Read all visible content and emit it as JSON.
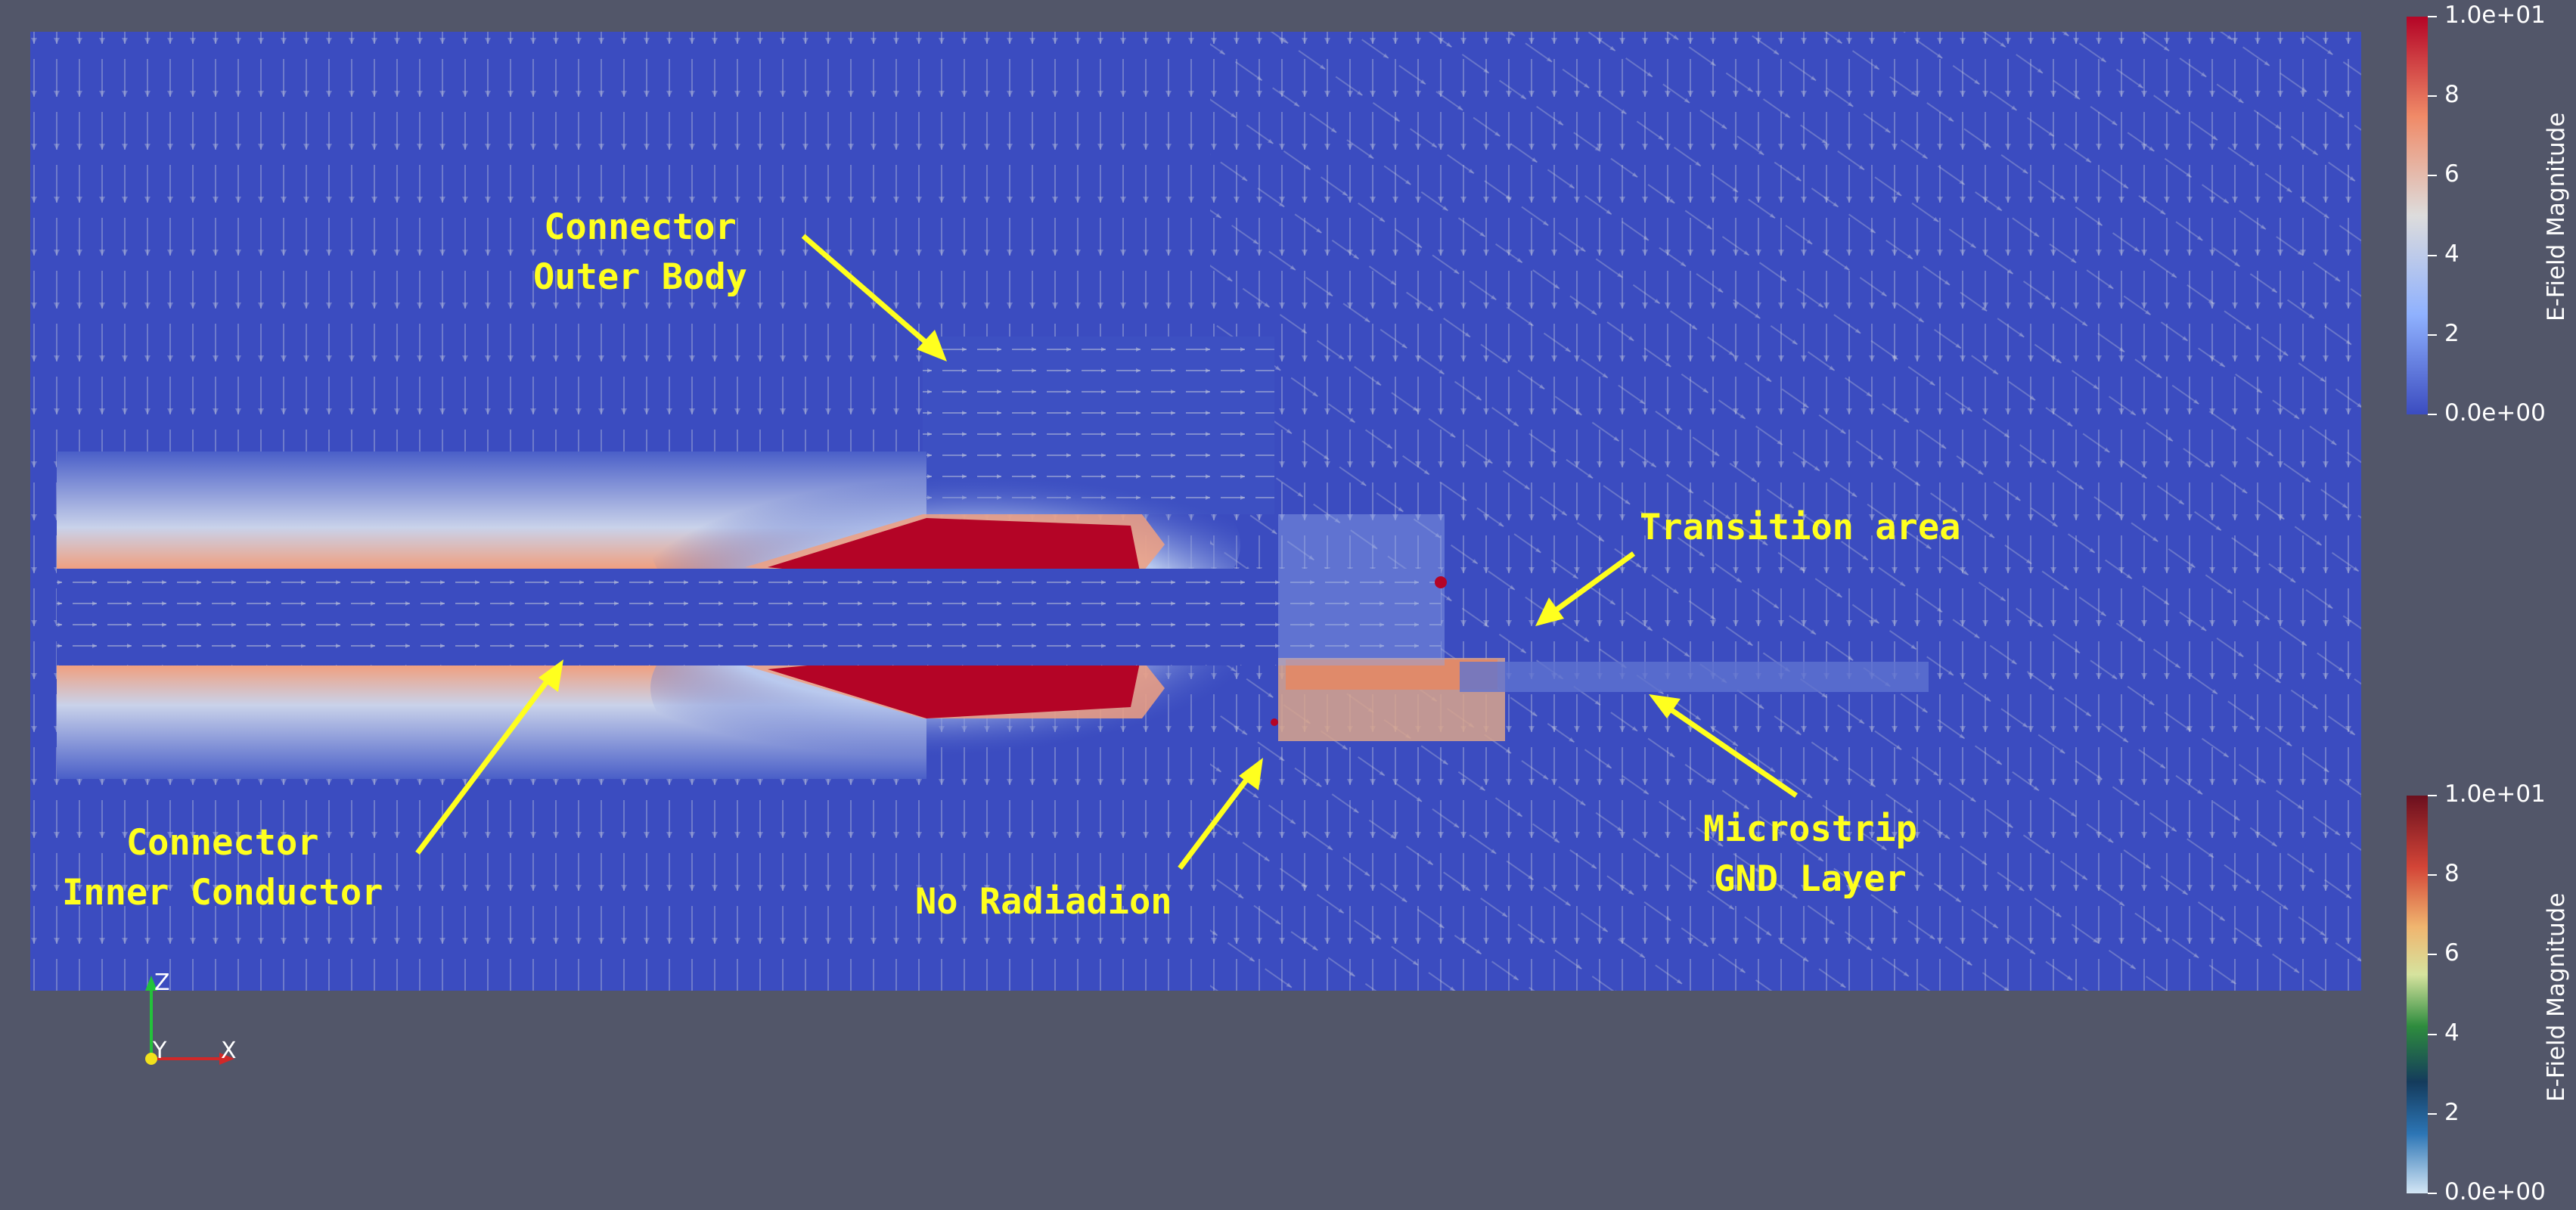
{
  "annotations": {
    "outer_body": "Connector\nOuter Body",
    "transition": "Transition area",
    "inner_conductor": "Connector\nInner Conductor",
    "no_radiation": "No Radiadion",
    "microstrip_gnd": "Microstrip\nGND Layer"
  },
  "colorbar_top": {
    "title": "E-Field Magnitude",
    "colormap": "Cool to Warm",
    "ticks": [
      "1.0e+01",
      "8",
      "6",
      "4",
      "2",
      "0.0e+00"
    ]
  },
  "colorbar_bottom": {
    "title": "E-Field Magnitude",
    "colormap": "Blue-Green-Red",
    "ticks": [
      "1.0e+01",
      "8",
      "6",
      "4",
      "2",
      "0.0e+00"
    ]
  },
  "axes": {
    "z": "Z",
    "y": "Y",
    "x": "X"
  },
  "colors": {
    "background": "#525669",
    "field_low": "#3b4cc0",
    "field_high": "#b40426",
    "annotation": "#ffff1e"
  }
}
